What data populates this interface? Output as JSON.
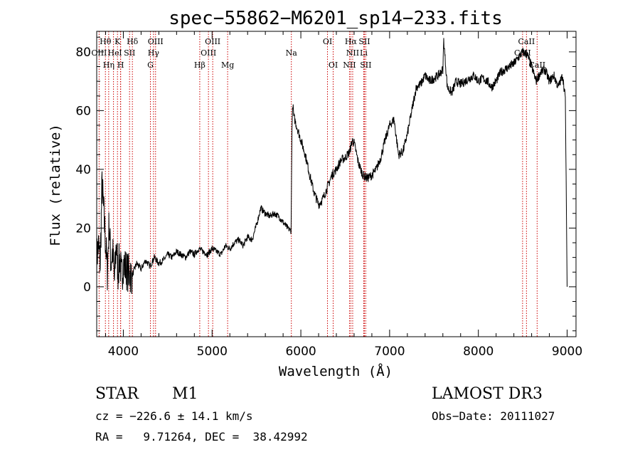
{
  "chart_data": {
    "type": "line",
    "title": "spec−55862−M6201_sp14−233.fits",
    "xlabel": "Wavelength (Å)",
    "ylabel": "Flux (relative)",
    "xlim": [
      3700,
      9100
    ],
    "ylim": [
      -17,
      87
    ],
    "xticks": [
      4000,
      5000,
      6000,
      7000,
      8000,
      9000
    ],
    "yticks": [
      0,
      20,
      40,
      60,
      80
    ],
    "grid": false,
    "series": [
      {
        "x": [
          3700,
          3720,
          3740,
          3760,
          3780,
          3800,
          3820,
          3840,
          3860,
          3880,
          3900,
          3920,
          3940,
          3960,
          3980,
          4000,
          4050,
          4100,
          4150,
          4200,
          4250,
          4300,
          4350,
          4400,
          4450,
          4500,
          4550,
          4600,
          4650,
          4700,
          4750,
          4800,
          4850,
          4900,
          4950,
          5000,
          5050,
          5100,
          5150,
          5200,
          5250,
          5300,
          5350,
          5400,
          5450,
          5500,
          5550,
          5570,
          5600,
          5650,
          5700,
          5750,
          5800,
          5850,
          5890,
          5900,
          5910,
          5920,
          5950,
          6000,
          6050,
          6100,
          6150,
          6200,
          6250,
          6300,
          6350,
          6400,
          6450,
          6500,
          6550,
          6580,
          6600,
          6650,
          6700,
          6750,
          6800,
          6850,
          6900,
          6950,
          7000,
          7050,
          7100,
          7150,
          7200,
          7250,
          7300,
          7350,
          7400,
          7450,
          7500,
          7550,
          7600,
          7610,
          7650,
          7700,
          7750,
          7800,
          7850,
          7900,
          7950,
          8000,
          8050,
          8100,
          8150,
          8200,
          8250,
          8300,
          8350,
          8400,
          8450,
          8500,
          8550,
          8600,
          8650,
          8700,
          8750,
          8800,
          8850,
          8900,
          8950,
          8980,
          9000
        ],
        "values": [
          10,
          14,
          8,
          35,
          25,
          15,
          5,
          22,
          8,
          12,
          2,
          15,
          5,
          10,
          3,
          8,
          5,
          4,
          8,
          6,
          9,
          7,
          10,
          8,
          9,
          11,
          10,
          12,
          11,
          10,
          12,
          11,
          13,
          12,
          11,
          13,
          12,
          11,
          14,
          13,
          15,
          16,
          14,
          17,
          16,
          21,
          27,
          26,
          25,
          24,
          25,
          24,
          22,
          20,
          19,
          55,
          62,
          58,
          55,
          50,
          45,
          38,
          32,
          28,
          30,
          34,
          38,
          40,
          43,
          44,
          46,
          50,
          49,
          42,
          38,
          37,
          38,
          40,
          44,
          50,
          55,
          57,
          45,
          46,
          52,
          60,
          68,
          69,
          72,
          70,
          71,
          72,
          74,
          84,
          68,
          66,
          70,
          69,
          70,
          71,
          72,
          70,
          71,
          70,
          68,
          70,
          73,
          74,
          75,
          76,
          78,
          80,
          79,
          75,
          70,
          73,
          74,
          70,
          72,
          68,
          72,
          64,
          0
        ]
      }
    ],
    "lines_row1": [
      {
        "label": "Hθ",
        "x": 3798
      },
      {
        "label": "K",
        "x": 3934
      },
      {
        "label": "Hδ",
        "x": 4102
      },
      {
        "label": "OIII",
        "x": 4363
      },
      {
        "label": "OIII",
        "x": 5007
      },
      {
        "label": "OI",
        "x": 6300
      },
      {
        "label": "Hα",
        "x": 6563
      },
      {
        "label": "SII",
        "x": 6716
      },
      {
        "label": "CaII",
        "x": 8542
      }
    ],
    "lines_row2": [
      {
        "label": "OIII",
        "x": 3727
      },
      {
        "label": "He",
        "x": 3889
      },
      {
        "label": "I",
        "x": 3968
      },
      {
        "label": "SII",
        "x": 4070
      },
      {
        "label": "Hγ",
        "x": 4340
      },
      {
        "label": "OIII",
        "x": 4959
      },
      {
        "label": "Na",
        "x": 5893
      },
      {
        "label": "NII",
        "x": 6584
      },
      {
        "label": "Li",
        "x": 6708
      },
      {
        "label": "CaII",
        "x": 8498
      }
    ],
    "lines_row3": [
      {
        "label": "Hη",
        "x": 3835
      },
      {
        "label": "H",
        "x": 3970
      },
      {
        "label": "G",
        "x": 4305
      },
      {
        "label": "Hβ",
        "x": 4861
      },
      {
        "label": "Mg",
        "x": 5175
      },
      {
        "label": "OI",
        "x": 6364
      },
      {
        "label": "NII",
        "x": 6548
      },
      {
        "label": "SII",
        "x": 6731
      },
      {
        "label": "CaII",
        "x": 8662
      }
    ],
    "line_color": "#000000",
    "marker_color": "#cc0000"
  },
  "info": {
    "class_label": "STAR",
    "subclass": "M1",
    "survey": "LAMOST DR3",
    "cz_line": "cz = −226.6 ± 14.1 km/s",
    "obs_date": "Obs−Date: 20111027",
    "radec_line": "RA =   9.71264, DEC =  38.42992"
  }
}
